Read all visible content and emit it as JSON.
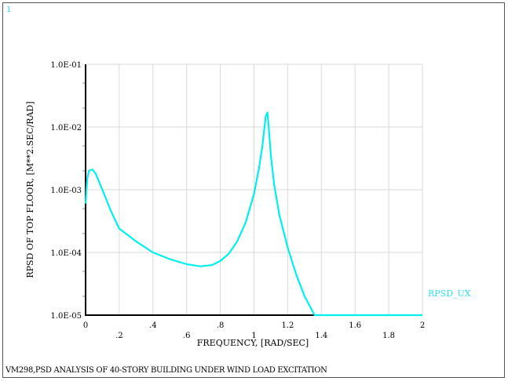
{
  "window": {
    "number_label": "1",
    "footer_title": "VM298,PSD ANALYSIS OF 40-STORY BUILDING UNDER WIND LOAD EXCITATION"
  },
  "colors": {
    "curve": "#00f0f0",
    "axis": "#000000",
    "grid": "#d8d8d8",
    "legend_text": "#33e0ff"
  },
  "chart_data": {
    "type": "line",
    "title": "VM298,PSD ANALYSIS OF 40-STORY BUILDING UNDER WIND LOAD EXCITATION",
    "xlabel": "FREQUENCY, [RAD/SEC]",
    "ylabel": "RPSD OF TOP FLOOR, [M**2.SEC/RAD]",
    "xlim": [
      0,
      2
    ],
    "ylim": [
      1e-05,
      0.1
    ],
    "yscale": "log",
    "grid": true,
    "legend_position": "right",
    "x_ticks": [
      "0",
      ".2",
      ".4",
      ".6",
      ".8",
      "1",
      "1.2",
      "1.4",
      "1.6",
      "1.8",
      "2"
    ],
    "y_ticks": [
      "1.0E-05",
      "1.0E-04",
      "1.0E-03",
      "1.0E-02",
      "1.0E-01"
    ],
    "series": [
      {
        "name": "RPSD_UX",
        "x": [
          0.0,
          0.01,
          0.02,
          0.04,
          0.06,
          0.1,
          0.15,
          0.2,
          0.3,
          0.4,
          0.5,
          0.6,
          0.68,
          0.75,
          0.8,
          0.85,
          0.9,
          0.95,
          1.0,
          1.03,
          1.05,
          1.07,
          1.08,
          1.09,
          1.1,
          1.12,
          1.15,
          1.2,
          1.25,
          1.3,
          1.36,
          1.5,
          2.0
        ],
        "y": [
          0.0006,
          0.0015,
          0.002,
          0.0021,
          0.0018,
          0.001,
          0.00046,
          0.00024,
          0.00015,
          0.0001,
          7.8e-05,
          6.5e-05,
          6e-05,
          6.3e-05,
          7.3e-05,
          9.5e-05,
          0.00015,
          0.0003,
          0.00085,
          0.0022,
          0.005,
          0.015,
          0.017,
          0.008,
          0.0035,
          0.0012,
          0.0004,
          0.00012,
          4.5e-05,
          2e-05,
          1e-05,
          1e-05,
          1e-05
        ]
      }
    ]
  }
}
